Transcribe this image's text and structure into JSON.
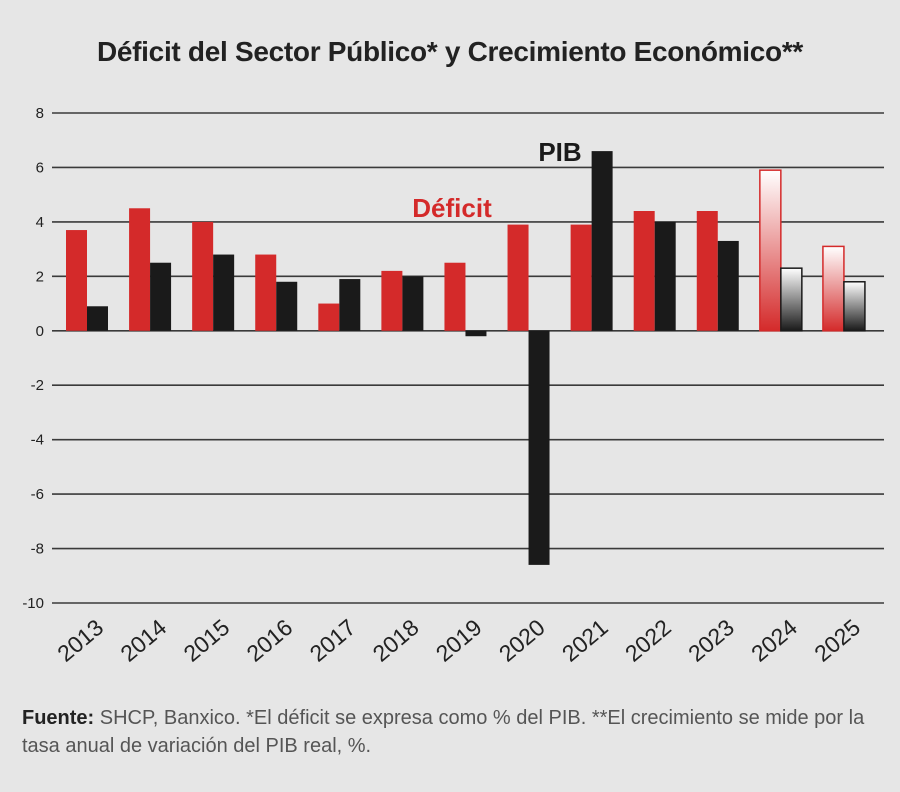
{
  "title": "Déficit del Sector Público* y Crecimiento Económico**",
  "footnote": {
    "label": "Fuente:",
    "text": " SHCP, Banxico. *El déficit se expresa como % del PIB. **El crecimiento se mide por la tasa anual de variación del PIB real, %."
  },
  "chart_data": {
    "type": "bar",
    "categories": [
      "2013",
      "2014",
      "2015",
      "2016",
      "2017",
      "2018",
      "2019",
      "2020",
      "2021",
      "2022",
      "2023",
      "2024",
      "2025"
    ],
    "series": [
      {
        "name": "Déficit",
        "color": "#d42a2a",
        "values": [
          3.7,
          4.5,
          4.0,
          2.8,
          1.0,
          2.2,
          2.5,
          3.9,
          3.9,
          4.4,
          4.4,
          5.9,
          3.1
        ]
      },
      {
        "name": "PIB",
        "color": "#1a1a1a",
        "values": [
          0.9,
          2.5,
          2.8,
          1.8,
          1.9,
          2.0,
          -0.2,
          -8.6,
          6.6,
          4.0,
          3.3,
          2.3,
          1.8
        ]
      }
    ],
    "projected_categories": [
      "2024",
      "2025"
    ],
    "yticks": [
      8,
      6,
      4,
      2,
      0,
      -2,
      -4,
      -6,
      -8,
      -10
    ],
    "ylim": [
      -10,
      8
    ],
    "grid": true
  }
}
